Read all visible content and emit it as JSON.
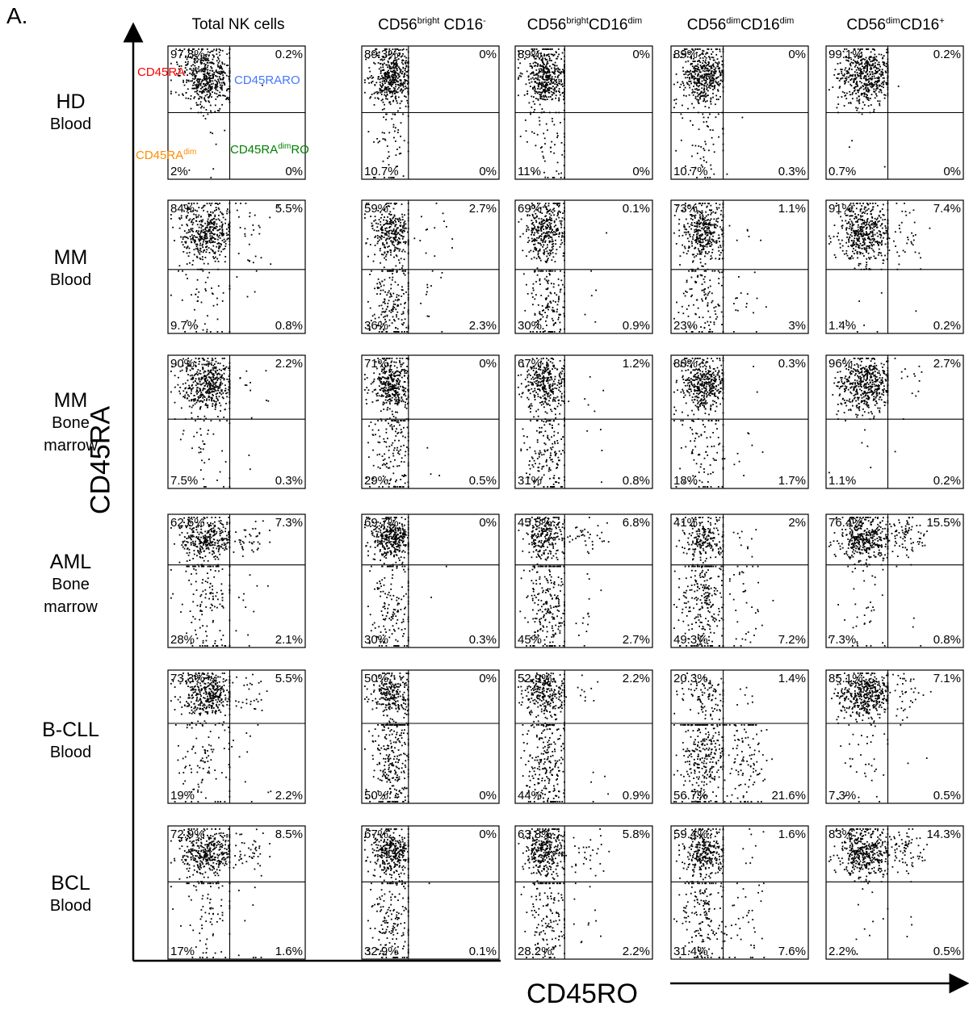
{
  "panel_label": "A.",
  "colors": {
    "ra": "#ff0000",
    "raro": "#4477ff",
    "radim": "#ff8c00",
    "radimro": "#008000",
    "dot": "#000000"
  },
  "chart_data": {
    "type": "scatter",
    "subtype": "flow-cytometry-quadrant-grid",
    "xlabel": "CD45RO",
    "ylabel": "CD45RA",
    "columns": [
      {
        "base": "Total NK cells",
        "sup1": "",
        "mid": "",
        "sup2": ""
      },
      {
        "base": "CD56",
        "sup1": "bright",
        "mid": " CD16",
        "sup2": "-"
      },
      {
        "base": "CD56",
        "sup1": "bright",
        "mid": "CD16",
        "sup2": "dim"
      },
      {
        "base": "CD56",
        "sup1": "dim",
        "mid": "CD16",
        "sup2": "dim"
      },
      {
        "base": "CD56",
        "sup1": "dim",
        "mid": "CD16",
        "sup2": "+"
      }
    ],
    "rows": [
      {
        "line1": "HD",
        "line2": "Blood",
        "line3": ""
      },
      {
        "line1": "MM",
        "line2": "Blood",
        "line3": ""
      },
      {
        "line1": "MM",
        "line2": "Bone",
        "line3": "marrow"
      },
      {
        "line1": "AML",
        "line2": "Bone",
        "line3": "marrow"
      },
      {
        "line1": "B-CLL",
        "line2": "Blood",
        "line3": ""
      },
      {
        "line1": "BCL",
        "line2": "Blood",
        "line3": ""
      }
    ],
    "quadrant_labels": {
      "upper_left": {
        "text": "CD45RA",
        "sup": ""
      },
      "upper_right": {
        "text": "CD45RARO",
        "sup": ""
      },
      "lower_left": {
        "text": "CD45RA",
        "sup": "dim"
      },
      "lower_right": {
        "text": "CD45RA",
        "sup": "dim",
        "suffix": "RO"
      }
    },
    "panels": [
      [
        {
          "ul": "97.8%",
          "ur": "0.2%",
          "ll": "2%",
          "lr": "0%"
        },
        {
          "ul": "89.3%",
          "ur": "0%",
          "ll": "10.7%",
          "lr": "0%"
        },
        {
          "ul": "89%",
          "ur": "0%",
          "ll": "11%",
          "lr": "0%"
        },
        {
          "ul": "89%",
          "ur": "0%",
          "ll": "10.7%",
          "lr": "0.3%"
        },
        {
          "ul": "99.1%",
          "ur": "0.2%",
          "ll": "0.7%",
          "lr": "0%"
        }
      ],
      [
        {
          "ul": "84%",
          "ur": "5.5%",
          "ll": "9.7%",
          "lr": "0.8%"
        },
        {
          "ul": "59%",
          "ur": "2.7%",
          "ll": "36%",
          "lr": "2.3%"
        },
        {
          "ul": "69%",
          "ur": "0.1%",
          "ll": "30%",
          "lr": "0.9%"
        },
        {
          "ul": "73%",
          "ur": "1.1%",
          "ll": "23%",
          "lr": "3%"
        },
        {
          "ul": "91%",
          "ur": "7.4%",
          "ll": "1.4%",
          "lr": "0.2%"
        }
      ],
      [
        {
          "ul": "90%",
          "ur": "2.2%",
          "ll": "7.5%",
          "lr": "0.3%"
        },
        {
          "ul": "71%",
          "ur": "0%",
          "ll": "29%",
          "lr": "0.5%"
        },
        {
          "ul": "67%",
          "ur": "1.2%",
          "ll": "31%",
          "lr": "0.8%"
        },
        {
          "ul": "80%",
          "ur": "0.3%",
          "ll": "18%",
          "lr": "1.7%"
        },
        {
          "ul": "96%",
          "ur": "2.7%",
          "ll": "1.1%",
          "lr": "0.2%"
        }
      ],
      [
        {
          "ul": "62.6%",
          "ur": "7.3%",
          "ll": "28%",
          "lr": "2.1%"
        },
        {
          "ul": "69.7%",
          "ur": "0%",
          "ll": "30%",
          "lr": "0.3%"
        },
        {
          "ul": "45.5%",
          "ur": "6.8%",
          "ll": "45%",
          "lr": "2.7%"
        },
        {
          "ul": "41%",
          "ur": "2%",
          "ll": "49.3%",
          "lr": "7.2%"
        },
        {
          "ul": "76.4%",
          "ur": "15.5%",
          "ll": "7.3%",
          "lr": "0.8%"
        }
      ],
      [
        {
          "ul": "73.3%",
          "ur": "5.5%",
          "ll": "19%",
          "lr": "2.2%"
        },
        {
          "ul": "50%",
          "ur": "0%",
          "ll": "50%",
          "lr": "0%"
        },
        {
          "ul": "52.9%",
          "ur": "2.2%",
          "ll": "44%",
          "lr": "0.9%"
        },
        {
          "ul": "20.3%",
          "ur": "1.4%",
          "ll": "56.7%",
          "lr": "21.6%"
        },
        {
          "ul": "85.1%",
          "ur": "7.1%",
          "ll": "7.3%",
          "lr": "0.5%"
        }
      ],
      [
        {
          "ul": "72.9%",
          "ur": "8.5%",
          "ll": "17%",
          "lr": "1.6%"
        },
        {
          "ul": "67%",
          "ur": "0%",
          "ll": "32.9%",
          "lr": "0.1%"
        },
        {
          "ul": "63.8%",
          "ur": "5.8%",
          "ll": "28.2%",
          "lr": "2.2%"
        },
        {
          "ul": "59.4%",
          "ur": "1.6%",
          "ll": "31.4%",
          "lr": "7.6%"
        },
        {
          "ul": "83%",
          "ur": "14.3%",
          "ll": "2.2%",
          "lr": "0.5%"
        }
      ]
    ]
  }
}
